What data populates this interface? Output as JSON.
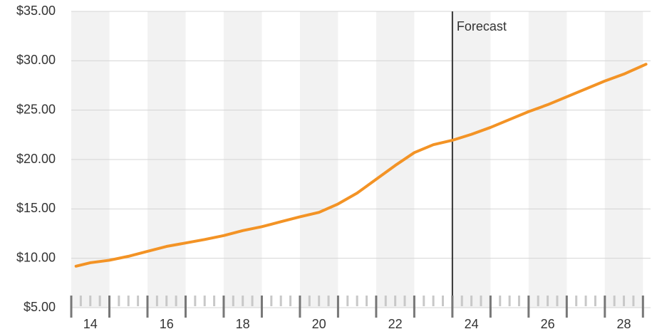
{
  "chart_data": {
    "type": "line",
    "x": [
      13.625,
      14,
      14.5,
      15,
      15.5,
      16,
      16.5,
      17,
      17.5,
      18,
      18.5,
      19,
      19.5,
      20,
      20.5,
      21,
      21.5,
      22,
      22.5,
      23,
      23.5,
      24,
      24.5,
      25,
      25.5,
      26,
      26.5,
      27,
      27.5,
      28,
      28.58
    ],
    "series": [
      {
        "color": "#f39325",
        "values": [
          9.2,
          9.55,
          9.8,
          10.2,
          10.7,
          11.2,
          11.55,
          11.9,
          12.3,
          12.8,
          13.2,
          13.7,
          14.2,
          14.65,
          15.5,
          16.6,
          18.0,
          19.4,
          20.7,
          21.5,
          21.95,
          22.55,
          23.25,
          24.05,
          24.85,
          25.55,
          26.35,
          27.15,
          27.95,
          28.65,
          29.65
        ]
      }
    ],
    "xlim": [
      13.5,
      28.7
    ],
    "xticks": [
      14,
      16,
      18,
      20,
      22,
      24,
      26,
      28
    ],
    "ylim": [
      5,
      35
    ],
    "yticks": [
      {
        "value": 5,
        "label": "$5.00"
      },
      {
        "value": 10,
        "label": "$10.00"
      },
      {
        "value": 15,
        "label": "$15.00"
      },
      {
        "value": 20,
        "label": "$20.00"
      },
      {
        "value": 25,
        "label": "$25.00"
      },
      {
        "value": 30,
        "label": "$30.00"
      },
      {
        "value": 35,
        "label": "$35.00"
      }
    ],
    "grid": true,
    "forecast_x": 23.5,
    "forecast_label": "Forecast"
  }
}
